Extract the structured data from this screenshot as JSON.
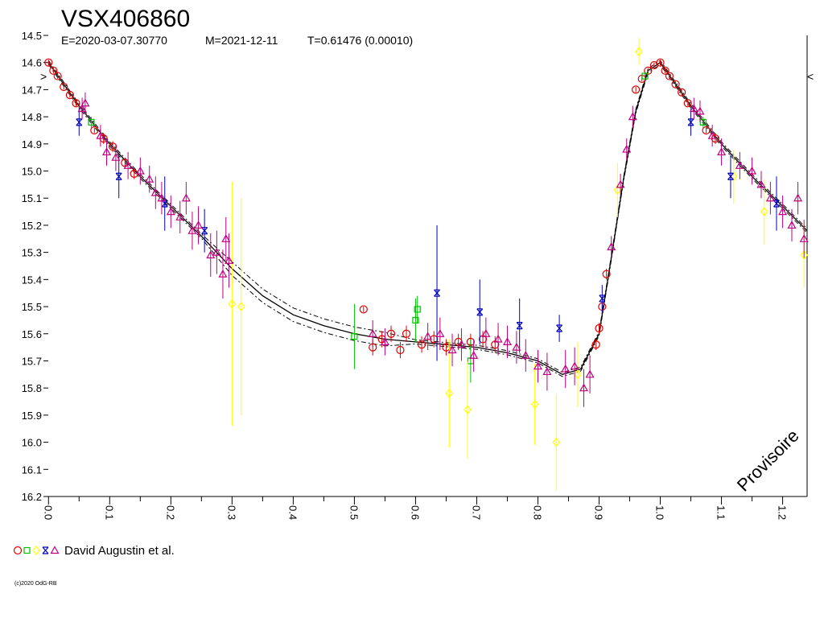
{
  "chart_data": {
    "type": "scatter",
    "title": "VSX406860",
    "subtitle": {
      "epoch": "E=2020-03-07.30770",
      "max": "M=2021-12-11",
      "period": "T=0.61476 (0.00010)"
    },
    "xlabel": "",
    "ylabel": "",
    "xlim": [
      -0.003,
      1.24
    ],
    "ylim": [
      14.5,
      16.2
    ],
    "y_inverted": true,
    "x_ticks": [
      "0.0",
      "0.1",
      "0.2",
      "0.3",
      "0.4",
      "0.5",
      "0.6",
      "0.7",
      "0.8",
      "0.9",
      "1.0",
      "1.1",
      "1.2"
    ],
    "y_ticks": [
      "14.5",
      "14.6",
      "14.7",
      "14.8",
      "14.9",
      "15.0",
      "15.1",
      "15.2",
      "15.3",
      "15.4",
      "15.5",
      "15.6",
      "15.7",
      "15.8",
      "15.9",
      "16.0",
      "16.1",
      "16.2"
    ],
    "grid": false,
    "left_marker": ">",
    "right_marker": "<",
    "legend": {
      "label": "David Augustin et al.",
      "placement": "bottom-left"
    },
    "watermark": "Provisoire",
    "copyright": "(c)2020 OdG-RB",
    "colors": {
      "circle": "#e00000",
      "square": "#00c000",
      "diamond": "#ffff00",
      "cross": "#0000c0",
      "triangle": "#c00080",
      "fit": "#000000"
    },
    "fit_curve": [
      {
        "x": 0.0,
        "y": 14.6
      },
      {
        "x": 0.05,
        "y": 14.76
      },
      {
        "x": 0.1,
        "y": 14.9
      },
      {
        "x": 0.15,
        "y": 15.02
      },
      {
        "x": 0.2,
        "y": 15.13
      },
      {
        "x": 0.25,
        "y": 15.24
      },
      {
        "x": 0.3,
        "y": 15.36
      },
      {
        "x": 0.35,
        "y": 15.46
      },
      {
        "x": 0.4,
        "y": 15.53
      },
      {
        "x": 0.45,
        "y": 15.57
      },
      {
        "x": 0.5,
        "y": 15.6
      },
      {
        "x": 0.55,
        "y": 15.62
      },
      {
        "x": 0.6,
        "y": 15.63
      },
      {
        "x": 0.65,
        "y": 15.64
      },
      {
        "x": 0.7,
        "y": 15.65
      },
      {
        "x": 0.75,
        "y": 15.67
      },
      {
        "x": 0.8,
        "y": 15.7
      },
      {
        "x": 0.84,
        "y": 15.75
      },
      {
        "x": 0.87,
        "y": 15.73
      },
      {
        "x": 0.9,
        "y": 15.6
      },
      {
        "x": 0.92,
        "y": 15.32
      },
      {
        "x": 0.94,
        "y": 15.03
      },
      {
        "x": 0.96,
        "y": 14.78
      },
      {
        "x": 0.98,
        "y": 14.63
      },
      {
        "x": 1.0,
        "y": 14.6
      },
      {
        "x": 1.05,
        "y": 14.76
      },
      {
        "x": 1.1,
        "y": 14.9
      },
      {
        "x": 1.15,
        "y": 15.02
      },
      {
        "x": 1.2,
        "y": 15.13
      },
      {
        "x": 1.24,
        "y": 15.22
      }
    ],
    "series": [
      {
        "marker": "circle",
        "points": [
          {
            "x": 0.0,
            "y": 14.6,
            "err": 0.01
          },
          {
            "x": 0.008,
            "y": 14.63,
            "err": 0.01
          },
          {
            "x": 0.015,
            "y": 14.65,
            "err": 0.01
          },
          {
            "x": 0.025,
            "y": 14.69,
            "err": 0.01
          },
          {
            "x": 0.035,
            "y": 14.72,
            "err": 0.01
          },
          {
            "x": 0.045,
            "y": 14.75,
            "err": 0.01
          },
          {
            "x": 0.075,
            "y": 14.85,
            "err": 0.01
          },
          {
            "x": 0.09,
            "y": 14.88,
            "err": 0.02
          },
          {
            "x": 0.105,
            "y": 14.91,
            "err": 0.02
          },
          {
            "x": 0.125,
            "y": 14.97,
            "err": 0.02
          },
          {
            "x": 0.14,
            "y": 15.01,
            "err": 0.02
          },
          {
            "x": 0.515,
            "y": 15.51,
            "err": 0.01
          },
          {
            "x": 0.53,
            "y": 15.65,
            "err": 0.03
          },
          {
            "x": 0.545,
            "y": 15.62,
            "err": 0.03
          },
          {
            "x": 0.56,
            "y": 15.6,
            "err": 0.03
          },
          {
            "x": 0.575,
            "y": 15.66,
            "err": 0.03
          },
          {
            "x": 0.585,
            "y": 15.6,
            "err": 0.03
          },
          {
            "x": 0.61,
            "y": 15.64,
            "err": 0.03
          },
          {
            "x": 0.63,
            "y": 15.62,
            "err": 0.03
          },
          {
            "x": 0.65,
            "y": 15.65,
            "err": 0.03
          },
          {
            "x": 0.67,
            "y": 15.63,
            "err": 0.03
          },
          {
            "x": 0.69,
            "y": 15.63,
            "err": 0.03
          },
          {
            "x": 0.71,
            "y": 15.62,
            "err": 0.03
          },
          {
            "x": 0.73,
            "y": 15.64,
            "err": 0.03
          },
          {
            "x": 0.895,
            "y": 15.64,
            "err": 0.02
          },
          {
            "x": 0.9,
            "y": 15.58,
            "err": 0.02
          },
          {
            "x": 0.905,
            "y": 15.5,
            "err": 0.02
          },
          {
            "x": 0.912,
            "y": 15.38,
            "err": 0.02
          },
          {
            "x": 0.96,
            "y": 14.7,
            "err": 0.01
          },
          {
            "x": 0.97,
            "y": 14.66,
            "err": 0.01
          },
          {
            "x": 0.98,
            "y": 14.63,
            "err": 0.01
          },
          {
            "x": 0.99,
            "y": 14.61,
            "err": 0.01
          },
          {
            "x": 1.0,
            "y": 14.6,
            "err": 0.01
          },
          {
            "x": 1.008,
            "y": 14.63,
            "err": 0.01
          },
          {
            "x": 1.015,
            "y": 14.65,
            "err": 0.01
          },
          {
            "x": 1.025,
            "y": 14.68,
            "err": 0.01
          },
          {
            "x": 1.035,
            "y": 14.71,
            "err": 0.01
          },
          {
            "x": 1.045,
            "y": 14.75,
            "err": 0.01
          },
          {
            "x": 1.075,
            "y": 14.85,
            "err": 0.01
          },
          {
            "x": 1.09,
            "y": 14.88,
            "err": 0.02
          }
        ]
      },
      {
        "marker": "square",
        "points": [
          {
            "x": 0.07,
            "y": 14.82,
            "err": 0.02
          },
          {
            "x": 0.5,
            "y": 15.61,
            "err": 0.12
          },
          {
            "x": 0.6,
            "y": 15.55,
            "err": 0.08
          },
          {
            "x": 0.603,
            "y": 15.51,
            "err": 0.05
          },
          {
            "x": 0.69,
            "y": 15.7,
            "err": 0.08
          },
          {
            "x": 0.975,
            "y": 14.65,
            "err": 0.02
          },
          {
            "x": 1.07,
            "y": 14.82,
            "err": 0.02
          }
        ]
      },
      {
        "marker": "diamond",
        "points": [
          {
            "x": 0.3,
            "y": 15.49,
            "err": 0.45
          },
          {
            "x": 0.315,
            "y": 15.5,
            "err": 0.4
          },
          {
            "x": 0.655,
            "y": 15.82,
            "err": 0.2
          },
          {
            "x": 0.685,
            "y": 15.88,
            "err": 0.18
          },
          {
            "x": 0.795,
            "y": 15.86,
            "err": 0.15
          },
          {
            "x": 0.83,
            "y": 16.0,
            "err": 0.18
          },
          {
            "x": 0.865,
            "y": 15.75,
            "err": 0.12
          },
          {
            "x": 0.93,
            "y": 15.07,
            "err": 0.1
          },
          {
            "x": 0.965,
            "y": 14.56,
            "err": 0.05
          },
          {
            "x": 1.12,
            "y": 15.02,
            "err": 0.1
          },
          {
            "x": 1.17,
            "y": 15.15,
            "err": 0.12
          },
          {
            "x": 1.235,
            "y": 15.31,
            "err": 0.12
          }
        ]
      },
      {
        "marker": "cross",
        "points": [
          {
            "x": 0.05,
            "y": 14.82,
            "err": 0.05
          },
          {
            "x": 0.115,
            "y": 15.02,
            "err": 0.08
          },
          {
            "x": 0.19,
            "y": 15.12,
            "err": 0.1
          },
          {
            "x": 0.255,
            "y": 15.22,
            "err": 0.08
          },
          {
            "x": 0.635,
            "y": 15.45,
            "err": 0.25
          },
          {
            "x": 0.705,
            "y": 15.52,
            "err": 0.12
          },
          {
            "x": 0.77,
            "y": 15.57,
            "err": 0.1
          },
          {
            "x": 0.835,
            "y": 15.58,
            "err": 0.05
          },
          {
            "x": 0.905,
            "y": 15.47,
            "err": 0.05
          },
          {
            "x": 1.05,
            "y": 14.82,
            "err": 0.05
          },
          {
            "x": 1.115,
            "y": 15.02,
            "err": 0.08
          },
          {
            "x": 1.19,
            "y": 15.12,
            "err": 0.1
          }
        ]
      },
      {
        "marker": "triangle",
        "points": [
          {
            "x": 0.055,
            "y": 14.77,
            "err": 0.04
          },
          {
            "x": 0.06,
            "y": 14.75,
            "err": 0.04
          },
          {
            "x": 0.085,
            "y": 14.87,
            "err": 0.04
          },
          {
            "x": 0.095,
            "y": 14.93,
            "err": 0.05
          },
          {
            "x": 0.11,
            "y": 14.95,
            "err": 0.05
          },
          {
            "x": 0.13,
            "y": 14.98,
            "err": 0.05
          },
          {
            "x": 0.15,
            "y": 15.0,
            "err": 0.05
          },
          {
            "x": 0.165,
            "y": 15.03,
            "err": 0.05
          },
          {
            "x": 0.175,
            "y": 15.08,
            "err": 0.06
          },
          {
            "x": 0.185,
            "y": 15.1,
            "err": 0.06
          },
          {
            "x": 0.2,
            "y": 15.15,
            "err": 0.06
          },
          {
            "x": 0.215,
            "y": 15.17,
            "err": 0.06
          },
          {
            "x": 0.225,
            "y": 15.1,
            "err": 0.06
          },
          {
            "x": 0.235,
            "y": 15.22,
            "err": 0.07
          },
          {
            "x": 0.245,
            "y": 15.2,
            "err": 0.07
          },
          {
            "x": 0.265,
            "y": 15.31,
            "err": 0.08
          },
          {
            "x": 0.275,
            "y": 15.3,
            "err": 0.08
          },
          {
            "x": 0.285,
            "y": 15.38,
            "err": 0.09
          },
          {
            "x": 0.29,
            "y": 15.25,
            "err": 0.08
          },
          {
            "x": 0.295,
            "y": 15.33,
            "err": 0.1
          },
          {
            "x": 0.53,
            "y": 15.6,
            "err": 0.05
          },
          {
            "x": 0.55,
            "y": 15.63,
            "err": 0.05
          },
          {
            "x": 0.62,
            "y": 15.61,
            "err": 0.05
          },
          {
            "x": 0.64,
            "y": 15.6,
            "err": 0.06
          },
          {
            "x": 0.66,
            "y": 15.66,
            "err": 0.06
          },
          {
            "x": 0.675,
            "y": 15.64,
            "err": 0.06
          },
          {
            "x": 0.695,
            "y": 15.68,
            "err": 0.06
          },
          {
            "x": 0.715,
            "y": 15.6,
            "err": 0.06
          },
          {
            "x": 0.735,
            "y": 15.62,
            "err": 0.06
          },
          {
            "x": 0.75,
            "y": 15.63,
            "err": 0.06
          },
          {
            "x": 0.765,
            "y": 15.65,
            "err": 0.06
          },
          {
            "x": 0.78,
            "y": 15.68,
            "err": 0.06
          },
          {
            "x": 0.8,
            "y": 15.72,
            "err": 0.06
          },
          {
            "x": 0.815,
            "y": 15.74,
            "err": 0.07
          },
          {
            "x": 0.845,
            "y": 15.73,
            "err": 0.07
          },
          {
            "x": 0.86,
            "y": 15.72,
            "err": 0.07
          },
          {
            "x": 0.875,
            "y": 15.8,
            "err": 0.07
          },
          {
            "x": 0.885,
            "y": 15.75,
            "err": 0.07
          },
          {
            "x": 0.92,
            "y": 15.28,
            "err": 0.04
          },
          {
            "x": 0.935,
            "y": 15.05,
            "err": 0.04
          },
          {
            "x": 0.945,
            "y": 14.92,
            "err": 0.04
          },
          {
            "x": 0.955,
            "y": 14.8,
            "err": 0.04
          },
          {
            "x": 1.055,
            "y": 14.77,
            "err": 0.04
          },
          {
            "x": 1.065,
            "y": 14.78,
            "err": 0.04
          },
          {
            "x": 1.085,
            "y": 14.87,
            "err": 0.04
          },
          {
            "x": 1.1,
            "y": 14.93,
            "err": 0.05
          },
          {
            "x": 1.13,
            "y": 14.98,
            "err": 0.05
          },
          {
            "x": 1.15,
            "y": 15.0,
            "err": 0.05
          },
          {
            "x": 1.165,
            "y": 15.05,
            "err": 0.05
          },
          {
            "x": 1.18,
            "y": 15.1,
            "err": 0.06
          },
          {
            "x": 1.2,
            "y": 15.15,
            "err": 0.06
          },
          {
            "x": 1.215,
            "y": 15.2,
            "err": 0.06
          },
          {
            "x": 1.225,
            "y": 15.1,
            "err": 0.06
          },
          {
            "x": 1.235,
            "y": 15.25,
            "err": 0.07
          }
        ]
      }
    ]
  }
}
